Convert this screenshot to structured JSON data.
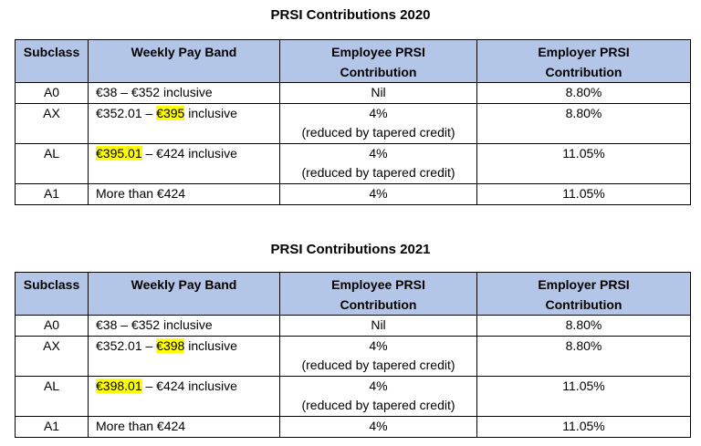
{
  "tables": [
    {
      "title": "PRSI Contributions 2020",
      "headers": [
        "Subclass",
        "Weekly Pay Band",
        "Employee PRSI",
        "Contribution",
        "Employer PRSI",
        "Contribution"
      ],
      "rows": [
        {
          "subclass": "A0",
          "band_pre": "€38 – €352 inclusive",
          "band_hl": "",
          "band_post": "",
          "employee": "Nil",
          "employee_note": "",
          "employer": "8.80%"
        },
        {
          "subclass": "AX",
          "band_pre": "€352.01 – ",
          "band_hl": "€395",
          "band_post": " inclusive",
          "employee": "4%",
          "employee_note": "(reduced by tapered credit)",
          "employer": "8.80%"
        },
        {
          "subclass": "AL",
          "band_pre": "",
          "band_hl": "€395.01",
          "band_post": " – €424 inclusive",
          "employee": "4%",
          "employee_note": "(reduced by tapered credit)",
          "employer": "11.05%"
        },
        {
          "subclass": "A1",
          "band_pre": "More than €424",
          "band_hl": "",
          "band_post": "",
          "employee": "4%",
          "employee_note": "",
          "employer": "11.05%"
        }
      ]
    },
    {
      "title": "PRSI Contributions 2021",
      "headers": [
        "Subclass",
        "Weekly Pay Band",
        "Employee PRSI",
        "Contribution",
        "Employer PRSI",
        "Contribution"
      ],
      "rows": [
        {
          "subclass": "A0",
          "band_pre": "€38 – €352 inclusive",
          "band_hl": "",
          "band_post": "",
          "employee": "Nil",
          "employee_note": "",
          "employer": "8.80%"
        },
        {
          "subclass": "AX",
          "band_pre": "€352.01 – ",
          "band_hl": "€398",
          "band_post": " inclusive",
          "employee": "4%",
          "employee_note": "(reduced by tapered credit)",
          "employer": "8.80%"
        },
        {
          "subclass": "AL",
          "band_pre": "",
          "band_hl": "€398.01",
          "band_post": " – €424 inclusive",
          "employee": "4%",
          "employee_note": "(reduced by tapered credit)",
          "employer": "11.05%"
        },
        {
          "subclass": "A1",
          "band_pre": "More than €424",
          "band_hl": "",
          "band_post": "",
          "employee": "4%",
          "employee_note": "",
          "employer": "11.05%"
        }
      ]
    }
  ],
  "colors": {
    "header_bg": "#b4c6e7",
    "highlight": "#ffff00"
  }
}
